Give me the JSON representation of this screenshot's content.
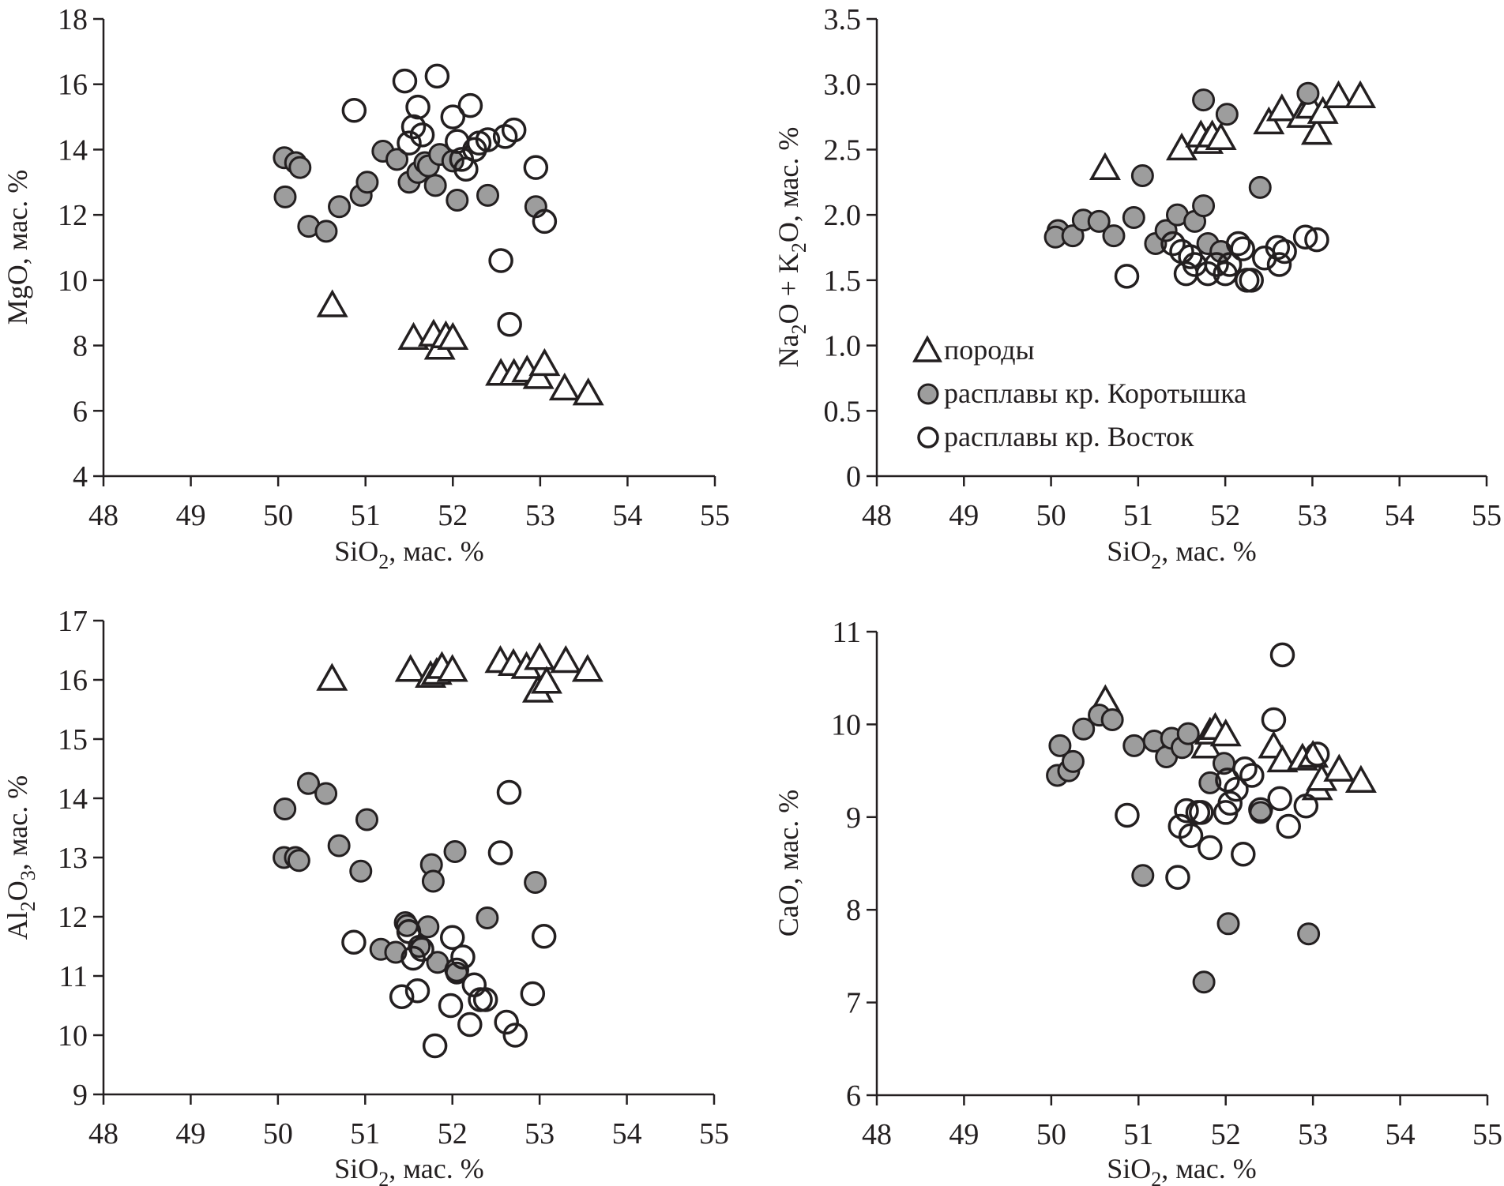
{
  "chart_data": [
    {
      "type": "scatter",
      "id": "mgo",
      "title": "",
      "xlabel": "SiO2, мас. %",
      "ylabel": "MgO, мас. %",
      "xlim": [
        48,
        55
      ],
      "ylim": [
        4,
        18
      ],
      "xticks": [
        48,
        49,
        50,
        51,
        52,
        53,
        54,
        55
      ],
      "yticks": [
        4,
        6,
        8,
        10,
        12,
        14,
        16,
        18
      ],
      "grid": false,
      "series": [
        {
          "name": "породы",
          "marker": "triangle",
          "points": [
            [
              50.62,
              9.2
            ],
            [
              51.55,
              8.2
            ],
            [
              51.78,
              8.3
            ],
            [
              51.85,
              7.9
            ],
            [
              51.92,
              8.25
            ],
            [
              52.0,
              8.2
            ],
            [
              52.55,
              7.1
            ],
            [
              52.7,
              7.1
            ],
            [
              52.85,
              7.2
            ],
            [
              52.98,
              7.0
            ],
            [
              53.05,
              7.4
            ],
            [
              53.28,
              6.65
            ],
            [
              53.55,
              6.5
            ]
          ]
        },
        {
          "name": "расплавы кр. Коротышка",
          "marker": "filled-circle",
          "points": [
            [
              50.07,
              13.75
            ],
            [
              50.2,
              13.6
            ],
            [
              50.25,
              13.45
            ],
            [
              50.08,
              12.55
            ],
            [
              50.35,
              11.65
            ],
            [
              50.55,
              11.5
            ],
            [
              50.7,
              12.25
            ],
            [
              50.95,
              12.6
            ],
            [
              51.02,
              13.0
            ],
            [
              51.2,
              13.95
            ],
            [
              51.36,
              13.7
            ],
            [
              51.5,
              13.0
            ],
            [
              51.6,
              13.3
            ],
            [
              51.68,
              13.6
            ],
            [
              51.72,
              13.5
            ],
            [
              51.8,
              12.9
            ],
            [
              51.85,
              13.85
            ],
            [
              52.05,
              12.45
            ],
            [
              52.0,
              13.65
            ],
            [
              52.4,
              12.6
            ],
            [
              52.95,
              12.25
            ]
          ]
        },
        {
          "name": "расплавы кр. Восток",
          "marker": "open-circle",
          "points": [
            [
              50.87,
              15.2
            ],
            [
              51.45,
              16.1
            ],
            [
              51.82,
              16.25
            ],
            [
              51.6,
              15.3
            ],
            [
              51.55,
              14.7
            ],
            [
              51.65,
              14.45
            ],
            [
              51.5,
              14.2
            ],
            [
              52.0,
              15.0
            ],
            [
              52.2,
              15.35
            ],
            [
              52.05,
              14.25
            ],
            [
              52.1,
              13.7
            ],
            [
              52.15,
              13.4
            ],
            [
              52.25,
              14.0
            ],
            [
              52.3,
              14.2
            ],
            [
              52.4,
              14.3
            ],
            [
              52.6,
              14.4
            ],
            [
              52.7,
              14.6
            ],
            [
              52.95,
              13.45
            ],
            [
              53.05,
              11.8
            ],
            [
              52.55,
              10.6
            ],
            [
              52.65,
              8.65
            ]
          ]
        }
      ]
    },
    {
      "type": "scatter",
      "id": "alk",
      "title": "",
      "xlabel": "SiO2, мас. %",
      "ylabel": "Na2O + K2O, мас. %",
      "xlim": [
        48,
        55
      ],
      "ylim": [
        0,
        3.5
      ],
      "xticks": [
        48,
        49,
        50,
        51,
        52,
        53,
        54,
        55
      ],
      "yticks": [
        0,
        0.5,
        1.0,
        1.5,
        2.0,
        2.5,
        3.0,
        3.5
      ],
      "ytick_labels": [
        "0",
        "0.5",
        "1.0",
        "1.5",
        "2.0",
        "2.5",
        "3.0",
        "3.5"
      ],
      "grid": false,
      "legend": {
        "placement": "lower-left",
        "entries": [
          "породы",
          "расплавы кр. Коротышка",
          "расплавы кр. Восток"
        ]
      },
      "series": [
        {
          "name": "породы",
          "marker": "triangle",
          "points": [
            [
              50.62,
              2.35
            ],
            [
              51.5,
              2.5
            ],
            [
              51.72,
              2.6
            ],
            [
              51.8,
              2.55
            ],
            [
              51.85,
              2.6
            ],
            [
              51.95,
              2.58
            ],
            [
              52.5,
              2.7
            ],
            [
              52.65,
              2.8
            ],
            [
              52.88,
              2.75
            ],
            [
              52.98,
              2.82
            ],
            [
              53.05,
              2.62
            ],
            [
              53.12,
              2.78
            ],
            [
              53.3,
              2.9
            ],
            [
              53.55,
              2.9
            ]
          ]
        },
        {
          "name": "расплавы кр. Коротышка",
          "marker": "filled-circle",
          "points": [
            [
              50.08,
              1.88
            ],
            [
              50.05,
              1.83
            ],
            [
              50.25,
              1.84
            ],
            [
              50.37,
              1.96
            ],
            [
              50.55,
              1.95
            ],
            [
              50.72,
              1.84
            ],
            [
              50.95,
              1.98
            ],
            [
              51.05,
              2.3
            ],
            [
              51.2,
              1.78
            ],
            [
              51.32,
              1.88
            ],
            [
              51.45,
              2.0
            ],
            [
              51.65,
              1.95
            ],
            [
              51.75,
              2.07
            ],
            [
              51.75,
              2.88
            ],
            [
              51.8,
              1.78
            ],
            [
              51.95,
              1.72
            ],
            [
              52.02,
              2.77
            ],
            [
              52.4,
              2.21
            ],
            [
              52.95,
              2.93
            ]
          ]
        },
        {
          "name": "расплавы кр. Восток",
          "marker": "open-circle",
          "points": [
            [
              50.87,
              1.53
            ],
            [
              51.4,
              1.78
            ],
            [
              51.5,
              1.72
            ],
            [
              51.55,
              1.55
            ],
            [
              51.6,
              1.68
            ],
            [
              51.65,
              1.62
            ],
            [
              51.8,
              1.55
            ],
            [
              51.9,
              1.62
            ],
            [
              52.0,
              1.55
            ],
            [
              52.05,
              1.62
            ],
            [
              52.15,
              1.78
            ],
            [
              52.2,
              1.74
            ],
            [
              52.25,
              1.5
            ],
            [
              52.3,
              1.5
            ],
            [
              52.45,
              1.67
            ],
            [
              52.6,
              1.75
            ],
            [
              52.62,
              1.62
            ],
            [
              52.68,
              1.72
            ],
            [
              52.92,
              1.83
            ],
            [
              53.05,
              1.81
            ]
          ]
        }
      ]
    },
    {
      "type": "scatter",
      "id": "al2o3",
      "title": "",
      "xlabel": "SiO2, мас. %",
      "ylabel": "Al2O3, мас. %",
      "xlim": [
        48,
        55
      ],
      "ylim": [
        9,
        17
      ],
      "xticks": [
        48,
        49,
        50,
        51,
        52,
        53,
        54,
        55
      ],
      "yticks": [
        9,
        10,
        11,
        12,
        13,
        14,
        15,
        16,
        17
      ],
      "grid": false,
      "series": [
        {
          "name": "породы",
          "marker": "triangle",
          "points": [
            [
              50.62,
              16.0
            ],
            [
              51.52,
              16.15
            ],
            [
              51.75,
              16.05
            ],
            [
              51.82,
              16.1
            ],
            [
              51.88,
              16.2
            ],
            [
              52.0,
              16.15
            ],
            [
              52.55,
              16.3
            ],
            [
              52.7,
              16.25
            ],
            [
              52.85,
              16.2
            ],
            [
              53.0,
              16.35
            ],
            [
              52.98,
              15.8
            ],
            [
              53.08,
              15.95
            ],
            [
              53.3,
              16.3
            ],
            [
              53.55,
              16.15
            ]
          ]
        },
        {
          "name": "расплавы кр. Коротышка",
          "marker": "filled-circle",
          "points": [
            [
              50.08,
              13.82
            ],
            [
              50.07,
              13.0
            ],
            [
              50.2,
              13.0
            ],
            [
              50.24,
              12.95
            ],
            [
              50.35,
              14.25
            ],
            [
              50.55,
              14.08
            ],
            [
              50.7,
              13.2
            ],
            [
              50.95,
              12.77
            ],
            [
              51.02,
              13.64
            ],
            [
              51.18,
              11.45
            ],
            [
              51.35,
              11.4
            ],
            [
              51.46,
              11.9
            ],
            [
              51.48,
              11.85
            ],
            [
              51.62,
              11.5
            ],
            [
              51.72,
              11.83
            ],
            [
              51.76,
              12.88
            ],
            [
              51.78,
              12.6
            ],
            [
              51.83,
              11.23
            ],
            [
              52.03,
              13.1
            ],
            [
              52.05,
              11.05
            ],
            [
              52.4,
              11.98
            ],
            [
              52.95,
              12.58
            ]
          ]
        },
        {
          "name": "расплавы кр. Восток",
          "marker": "open-circle",
          "points": [
            [
              50.87,
              11.57
            ],
            [
              51.42,
              10.65
            ],
            [
              51.5,
              11.75
            ],
            [
              51.55,
              11.3
            ],
            [
              51.6,
              10.75
            ],
            [
              51.65,
              11.45
            ],
            [
              51.8,
              9.82
            ],
            [
              51.98,
              10.5
            ],
            [
              52.0,
              11.65
            ],
            [
              52.05,
              11.1
            ],
            [
              52.12,
              11.32
            ],
            [
              52.2,
              10.18
            ],
            [
              52.25,
              10.85
            ],
            [
              52.32,
              10.6
            ],
            [
              52.38,
              10.6
            ],
            [
              52.55,
              13.08
            ],
            [
              52.65,
              14.1
            ],
            [
              52.62,
              10.22
            ],
            [
              52.72,
              10.0
            ],
            [
              52.92,
              10.7
            ],
            [
              53.05,
              11.67
            ]
          ]
        }
      ]
    },
    {
      "type": "scatter",
      "id": "cao",
      "title": "",
      "xlabel": "SiO2, мас. %",
      "ylabel": "CaO, мас. %",
      "xlim": [
        48,
        55
      ],
      "ylim": [
        6,
        11
      ],
      "xticks": [
        48,
        49,
        50,
        51,
        52,
        53,
        54,
        55
      ],
      "yticks": [
        6,
        7,
        8,
        9,
        10,
        11
      ],
      "grid": false,
      "series": [
        {
          "name": "породы",
          "marker": "triangle",
          "points": [
            [
              50.62,
              10.25
            ],
            [
              51.78,
              9.75
            ],
            [
              51.82,
              9.9
            ],
            [
              51.88,
              9.95
            ],
            [
              52.0,
              9.88
            ],
            [
              52.55,
              9.75
            ],
            [
              52.65,
              9.6
            ],
            [
              52.88,
              9.62
            ],
            [
              53.0,
              9.65
            ],
            [
              53.05,
              9.3
            ],
            [
              53.1,
              9.4
            ],
            [
              53.3,
              9.5
            ],
            [
              53.55,
              9.38
            ]
          ]
        },
        {
          "name": "расплавы кр. Коротышка",
          "marker": "filled-circle",
          "points": [
            [
              50.07,
              9.45
            ],
            [
              50.1,
              9.77
            ],
            [
              50.2,
              9.5
            ],
            [
              50.25,
              9.6
            ],
            [
              50.37,
              9.95
            ],
            [
              50.55,
              10.1
            ],
            [
              50.7,
              10.05
            ],
            [
              50.95,
              9.77
            ],
            [
              51.05,
              8.37
            ],
            [
              51.18,
              9.82
            ],
            [
              51.32,
              9.65
            ],
            [
              51.38,
              9.85
            ],
            [
              51.5,
              9.75
            ],
            [
              51.57,
              9.9
            ],
            [
              51.75,
              7.22
            ],
            [
              51.82,
              9.37
            ],
            [
              51.98,
              9.58
            ],
            [
              52.03,
              7.85
            ],
            [
              52.4,
              9.05
            ],
            [
              52.95,
              7.74
            ]
          ]
        },
        {
          "name": "расплавы кр. Восток",
          "marker": "open-circle",
          "points": [
            [
              50.87,
              9.02
            ],
            [
              51.45,
              8.35
            ],
            [
              51.48,
              8.9
            ],
            [
              51.55,
              9.07
            ],
            [
              51.6,
              8.8
            ],
            [
              51.68,
              9.05
            ],
            [
              51.72,
              9.05
            ],
            [
              51.82,
              8.67
            ],
            [
              52.0,
              9.05
            ],
            [
              52.02,
              9.4
            ],
            [
              52.05,
              9.15
            ],
            [
              52.12,
              9.3
            ],
            [
              52.2,
              8.6
            ],
            [
              52.22,
              9.52
            ],
            [
              52.3,
              9.45
            ],
            [
              52.4,
              9.08
            ],
            [
              52.55,
              10.05
            ],
            [
              52.62,
              9.2
            ],
            [
              52.65,
              10.75
            ],
            [
              52.72,
              8.9
            ],
            [
              52.92,
              9.12
            ],
            [
              53.05,
              9.68
            ]
          ]
        }
      ]
    }
  ],
  "labels": {
    "xlabel_main": "SiO",
    "xlabel_sub": "2",
    "xlabel_rest": ", мас. %",
    "mgo_ylabel": "MgO, мас. %",
    "alk_ylabel_parts": [
      "Na",
      "2",
      "O + K",
      "2",
      "O, мас. %"
    ],
    "al_ylabel_parts": [
      "Al",
      "2",
      "O",
      "3",
      ", мас. %"
    ],
    "cao_ylabel": "CaO, мас. %"
  },
  "legend": {
    "items": [
      {
        "marker": "triangle",
        "label": "породы"
      },
      {
        "marker": "filled-circle",
        "label": "расплавы кр. Коротышка"
      },
      {
        "marker": "open-circle",
        "label": "расплавы кр. Восток"
      }
    ]
  },
  "colors": {
    "ink": "#231f20",
    "korotyshka_fill": "#9d9d9d",
    "background": "#ffffff"
  }
}
